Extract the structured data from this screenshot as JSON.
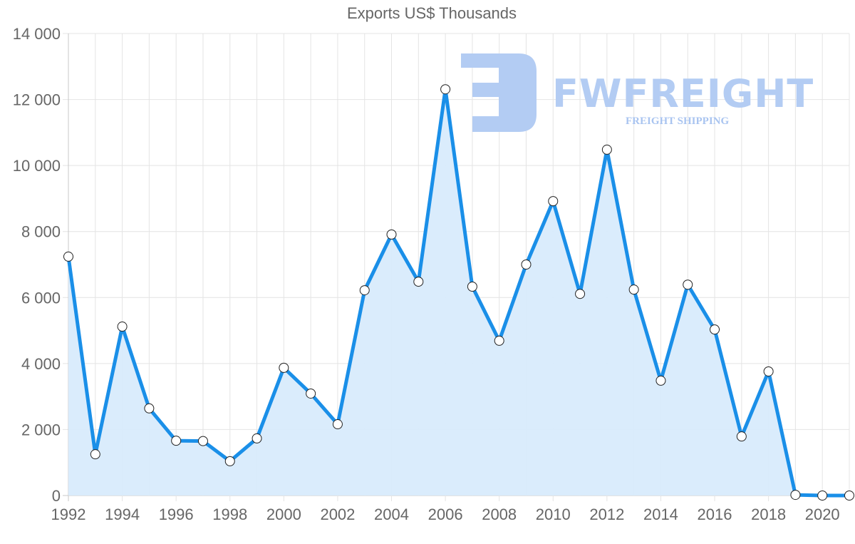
{
  "chart_data": {
    "type": "area",
    "title": "Exports US$ Thousands",
    "xlabel": "",
    "ylabel": "",
    "x": [
      1992,
      1993,
      1994,
      1995,
      1996,
      1997,
      1998,
      1999,
      2000,
      2001,
      2002,
      2003,
      2004,
      2005,
      2006,
      2007,
      2008,
      2009,
      2010,
      2011,
      2012,
      2013,
      2014,
      2015,
      2016,
      2017,
      2018,
      2019,
      2020,
      2021
    ],
    "series": [
      {
        "name": "Exports US$ Thousands",
        "color": "#1a8fe8",
        "fill": "#d8ebfc",
        "values": [
          7240,
          1250,
          5120,
          2640,
          1660,
          1650,
          1040,
          1730,
          3870,
          3090,
          2160,
          6220,
          7910,
          6480,
          12310,
          6330,
          4690,
          7000,
          8920,
          6110,
          10480,
          6240,
          3480,
          6390,
          5030,
          1790,
          3760,
          20,
          0,
          0
        ]
      }
    ],
    "ylim": [
      0,
      14000
    ],
    "yticks": [
      "0",
      "2 000",
      "4 000",
      "6 000",
      "8 000",
      "10 000",
      "12 000",
      "14 000"
    ],
    "xticks": [
      "1992",
      "1994",
      "1996",
      "1998",
      "2000",
      "2002",
      "2004",
      "2006",
      "2008",
      "2010",
      "2012",
      "2014",
      "2016",
      "2018",
      "2020"
    ],
    "grid": true,
    "legend": "none"
  },
  "watermark": {
    "brand": "FWFREIGHT",
    "tagline": "FREIGHT SHIPPING",
    "color": "#b3ccf3"
  }
}
